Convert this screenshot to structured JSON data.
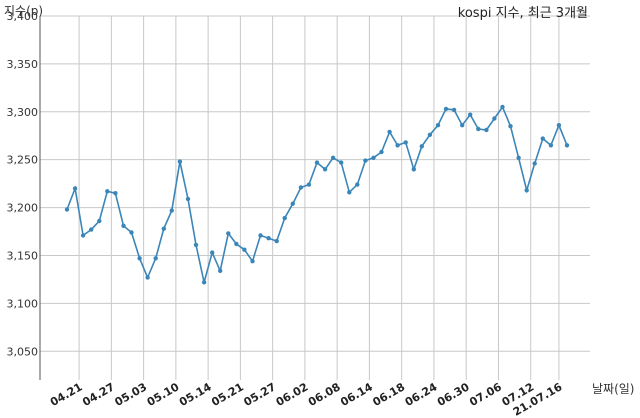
{
  "chart_data": {
    "type": "line",
    "title": "kospi 지수, 최근 3개월",
    "xlabel": "날짜(일)",
    "ylabel": "지수(p)",
    "ylim": [
      3020,
      3400
    ],
    "yticks": [
      3050,
      3100,
      3150,
      3200,
      3250,
      3300,
      3350,
      3400
    ],
    "ytick_labels": [
      "3,050",
      "3,100",
      "3,150",
      "3,200",
      "3,250",
      "3,300",
      "3,350",
      "3,400"
    ],
    "grid": true,
    "color": "#3b86b8",
    "x_ticks": [
      {
        "index": 1.5,
        "label": "04.21"
      },
      {
        "index": 5.5,
        "label": "04.27"
      },
      {
        "index": 9.5,
        "label": "05.03"
      },
      {
        "index": 13.5,
        "label": "05.10"
      },
      {
        "index": 17.5,
        "label": "05.14"
      },
      {
        "index": 21.5,
        "label": "05.21"
      },
      {
        "index": 25.5,
        "label": "05.27"
      },
      {
        "index": 29.5,
        "label": "06.02"
      },
      {
        "index": 33.5,
        "label": "06.08"
      },
      {
        "index": 37.5,
        "label": "06.14"
      },
      {
        "index": 41.5,
        "label": "06.18"
      },
      {
        "index": 45.5,
        "label": "06.24"
      },
      {
        "index": 49.5,
        "label": "06.30"
      },
      {
        "index": 53.5,
        "label": "07.06"
      },
      {
        "index": 57.5,
        "label": "07.12"
      },
      {
        "index": 61,
        "label": "21.07.16"
      }
    ],
    "values": [
      3198,
      3220,
      3171,
      3177,
      3186,
      3217,
      3215,
      3181,
      3174,
      3147,
      3127,
      3147,
      3178,
      3197,
      3248,
      3209,
      3161,
      3122,
      3153,
      3134,
      3173,
      3162,
      3156,
      3144,
      3171,
      3168,
      3165,
      3189,
      3204,
      3221,
      3224,
      3247,
      3240,
      3252,
      3247,
      3216,
      3224,
      3249,
      3252,
      3258,
      3279,
      3265,
      3268,
      3240,
      3264,
      3276,
      3286,
      3303,
      3302,
      3286,
      3297,
      3282,
      3281,
      3293,
      3305,
      3285,
      3252,
      3218,
      3246,
      3272,
      3265,
      3286,
      3265
    ]
  }
}
